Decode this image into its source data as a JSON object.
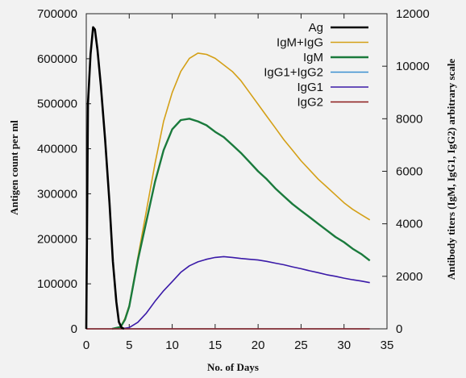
{
  "chart_data": {
    "type": "line",
    "xlabel": "No. of Days",
    "ylabel_left": "Antigen count per ml",
    "ylabel_right": "Antibody titers (IgM, IgG1, IgG2) arbitrary scale",
    "xlim": [
      0,
      35
    ],
    "ylim_left": [
      0,
      700000
    ],
    "ylim_right": [
      0,
      12000
    ],
    "x_ticks": [
      0,
      5,
      10,
      15,
      20,
      25,
      30,
      35
    ],
    "y_ticks_left": [
      "0",
      "100000",
      "200000",
      "300000",
      "400000",
      "500000",
      "600000",
      "700000"
    ],
    "y_ticks_right": [
      "0",
      "2000",
      "4000",
      "6000",
      "8000",
      "10000",
      "12000"
    ],
    "grid": false,
    "legend_position": "top-right",
    "series": [
      {
        "name": "Ag",
        "axis": "left",
        "color": "#000000",
        "x": [
          0,
          0.2,
          0.5,
          0.8,
          1.0,
          1.3,
          1.7,
          2.2,
          2.7,
          3.1,
          3.5,
          3.8,
          4.1,
          4.4
        ],
        "y": [
          0,
          500000,
          610000,
          670000,
          665000,
          620000,
          540000,
          420000,
          280000,
          150000,
          60000,
          15000,
          3000,
          0
        ]
      },
      {
        "name": "IgM+IgG",
        "axis": "right",
        "color": "#d4a017",
        "x": [
          3,
          4,
          4.5,
          5,
          6,
          7,
          8,
          9,
          10,
          11,
          12,
          13,
          14,
          15,
          16,
          17,
          18,
          19,
          20,
          21,
          22,
          23,
          24,
          25,
          26,
          27,
          28,
          29,
          30,
          31,
          32,
          33
        ],
        "y": [
          0,
          80,
          400,
          900,
          2700,
          4500,
          6300,
          7900,
          9000,
          9800,
          10300,
          10500,
          10450,
          10300,
          10050,
          9800,
          9450,
          9000,
          8550,
          8100,
          7650,
          7200,
          6800,
          6400,
          6050,
          5700,
          5400,
          5100,
          4800,
          4550,
          4350,
          4150
        ]
      },
      {
        "name": "IgM",
        "axis": "right",
        "color": "#1a7a3c",
        "x": [
          3,
          4,
          4.5,
          5,
          6,
          7,
          8,
          9,
          10,
          11,
          12,
          13,
          14,
          15,
          16,
          17,
          18,
          19,
          20,
          21,
          22,
          23,
          24,
          25,
          26,
          27,
          28,
          29,
          30,
          31,
          32,
          33
        ],
        "y": [
          0,
          70,
          350,
          850,
          2600,
          4100,
          5600,
          6800,
          7600,
          7950,
          8000,
          7900,
          7750,
          7500,
          7300,
          7000,
          6700,
          6350,
          6000,
          5700,
          5350,
          5050,
          4750,
          4500,
          4250,
          4000,
          3750,
          3500,
          3300,
          3050,
          2850,
          2600
        ]
      },
      {
        "name": "IgG1+IgG2",
        "axis": "right",
        "color": "#3a8fd0",
        "x": [
          0,
          33
        ],
        "y": [
          0,
          0
        ]
      },
      {
        "name": "IgG1",
        "axis": "right",
        "color": "#3a1aa8",
        "x": [
          4,
          5,
          6,
          7,
          8,
          9,
          10,
          11,
          12,
          13,
          14,
          15,
          16,
          17,
          18,
          19,
          20,
          21,
          22,
          23,
          24,
          25,
          26,
          27,
          28,
          29,
          30,
          31,
          32,
          33
        ],
        "y": [
          0,
          50,
          250,
          600,
          1050,
          1450,
          1800,
          2150,
          2400,
          2550,
          2650,
          2720,
          2750,
          2720,
          2680,
          2650,
          2620,
          2570,
          2500,
          2440,
          2360,
          2290,
          2210,
          2140,
          2060,
          2000,
          1930,
          1870,
          1820,
          1760
        ]
      },
      {
        "name": "IgG2",
        "axis": "right",
        "color": "#8b1a1a",
        "x": [
          0,
          33
        ],
        "y": [
          0,
          0
        ]
      }
    ]
  }
}
